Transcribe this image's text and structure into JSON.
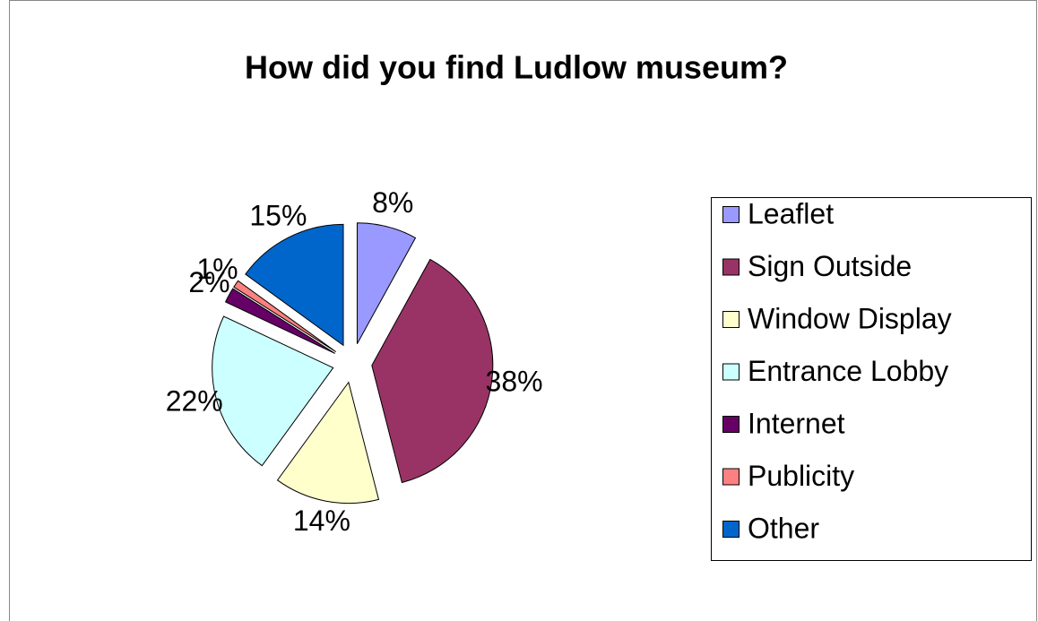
{
  "chart_data": {
    "type": "pie",
    "title": "How did you find Ludlow museum?",
    "categories": [
      "Leaflet",
      "Sign Outside",
      "Window Display",
      "Entrance Lobby",
      "Internet",
      "Publicity",
      "Other"
    ],
    "values": [
      8,
      38,
      14,
      22,
      2,
      1,
      15
    ],
    "value_labels": [
      "8%",
      "38%",
      "14%",
      "22%",
      "2%",
      "1%",
      "15%"
    ],
    "colors": [
      "#9999ff",
      "#993366",
      "#ffffcc",
      "#ccffff",
      "#660066",
      "#ff8080",
      "#0066cc"
    ],
    "legend": "right"
  }
}
